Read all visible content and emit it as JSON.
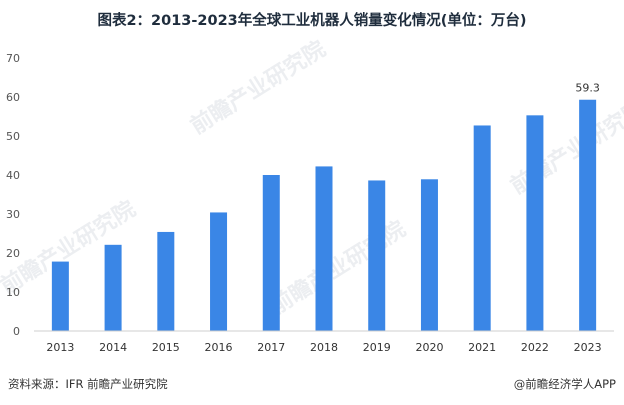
{
  "title": "图表2：2013-2023年全球工业机器人销量变化情况(单位：万台)",
  "source": "资料来源：IFR 前瞻产业研究院",
  "brand": "@前瞻经济学人APP",
  "watermark": "前瞻产业研究院",
  "colors": {
    "bar": "#3a86e6",
    "axis": "#cfcfcf",
    "text": "#555555"
  },
  "chart_data": {
    "type": "bar",
    "categories": [
      "2013",
      "2014",
      "2015",
      "2016",
      "2017",
      "2018",
      "2019",
      "2020",
      "2021",
      "2022",
      "2023"
    ],
    "values": [
      17.8,
      22.1,
      25.4,
      30.4,
      40.0,
      42.2,
      38.6,
      38.9,
      52.7,
      55.3,
      59.3
    ],
    "data_labels": {
      "2023": "59.3"
    },
    "yticks": [
      0,
      10,
      20,
      30,
      40,
      50,
      60,
      70
    ],
    "ylim": [
      0,
      70
    ],
    "grid": false,
    "xlabel": "",
    "ylabel": ""
  }
}
